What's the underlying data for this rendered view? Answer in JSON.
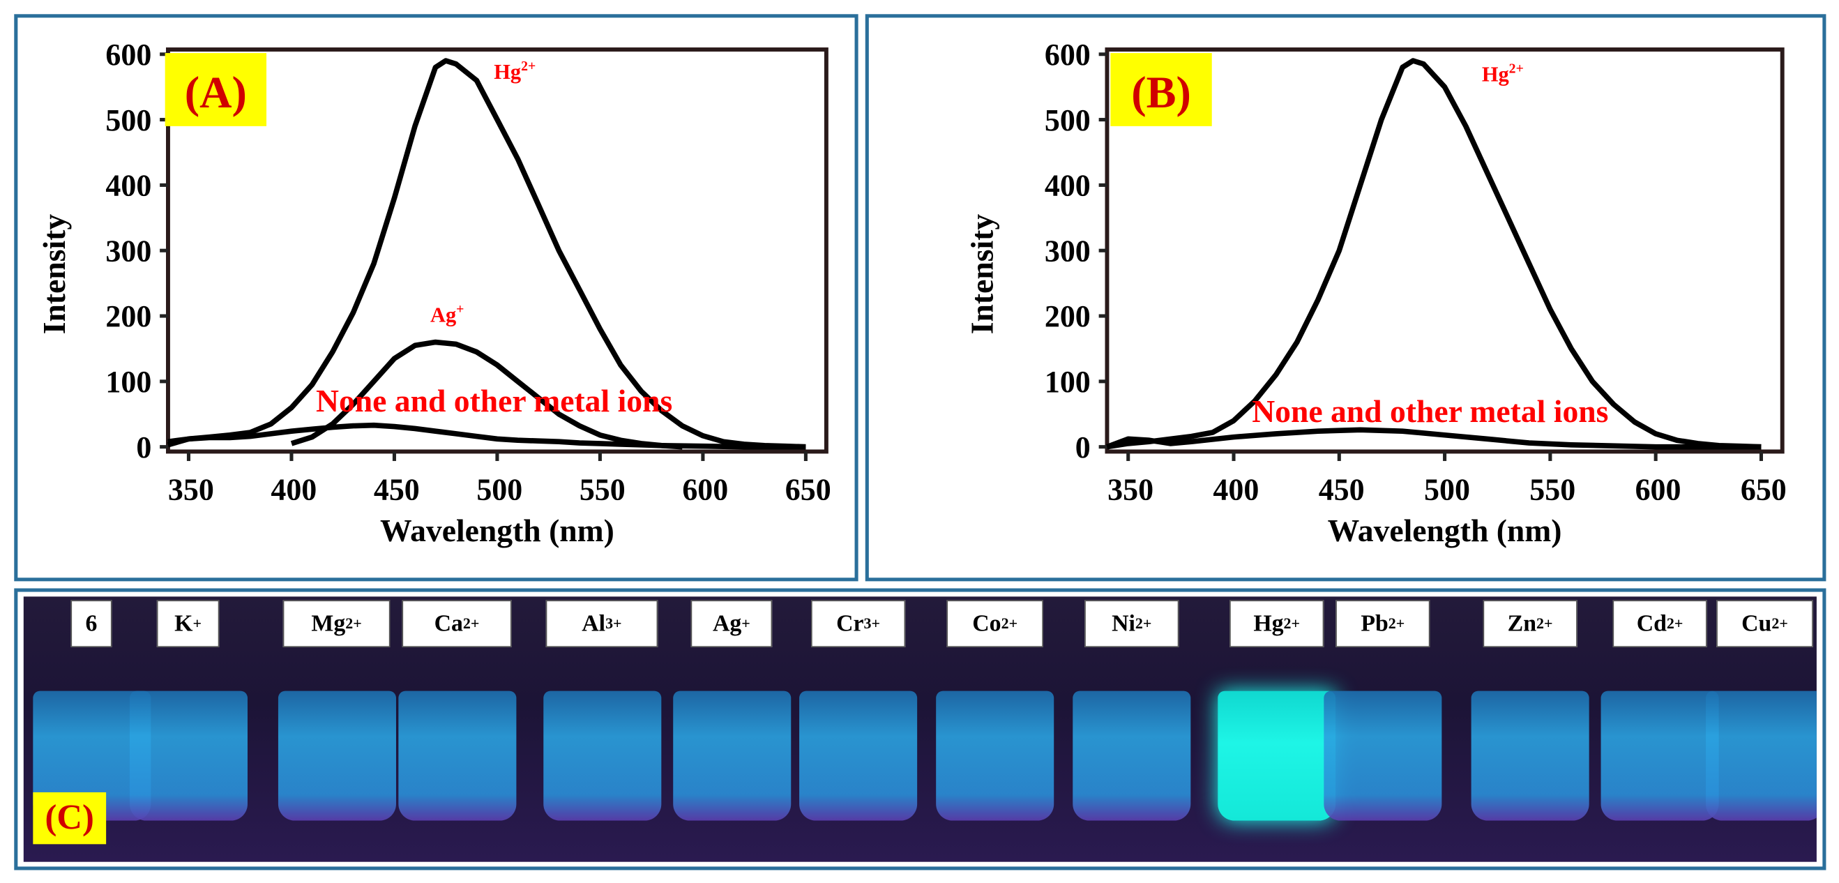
{
  "chart_data": [
    {
      "type": "line",
      "panel_label": "(A)",
      "xlabel": "Wavelength (nm)",
      "ylabel": "Intensity",
      "xlim": [
        340,
        660
      ],
      "ylim": [
        0,
        600
      ],
      "xticks": [
        350,
        400,
        450,
        500,
        550,
        600,
        650
      ],
      "yticks": [
        0,
        100,
        200,
        300,
        400,
        500,
        600
      ],
      "grid": false,
      "annotations": {
        "hg": "Hg",
        "hg_sup": "2+",
        "ag": "Ag",
        "ag_sup": "+",
        "none": "None and other metal ions"
      },
      "series": [
        {
          "name": "Hg2+",
          "x": [
            340,
            350,
            360,
            370,
            380,
            390,
            400,
            410,
            420,
            430,
            440,
            450,
            460,
            470,
            475,
            480,
            490,
            500,
            510,
            520,
            530,
            540,
            550,
            560,
            570,
            580,
            590,
            600,
            610,
            620,
            630,
            640,
            650
          ],
          "y": [
            8,
            12,
            15,
            18,
            22,
            35,
            60,
            95,
            145,
            205,
            280,
            380,
            490,
            580,
            590,
            585,
            560,
            500,
            440,
            370,
            300,
            240,
            180,
            125,
            85,
            55,
            32,
            17,
            8,
            4,
            2,
            1,
            0
          ]
        },
        {
          "name": "Ag+",
          "x": [
            400,
            410,
            420,
            430,
            440,
            450,
            460,
            470,
            480,
            490,
            500,
            510,
            520,
            530,
            540,
            550,
            560,
            570,
            580,
            590
          ],
          "y": [
            5,
            15,
            35,
            65,
            100,
            135,
            155,
            160,
            157,
            145,
            125,
            100,
            75,
            50,
            32,
            18,
            10,
            5,
            2,
            0
          ]
        },
        {
          "name": "None and other metal ions",
          "x": [
            340,
            350,
            360,
            370,
            380,
            390,
            400,
            410,
            420,
            430,
            440,
            450,
            460,
            470,
            480,
            490,
            500,
            510,
            520,
            530,
            540,
            550,
            560,
            570,
            580,
            600,
            620,
            650
          ],
          "y": [
            3,
            12,
            14,
            14,
            16,
            20,
            24,
            27,
            30,
            32,
            33,
            31,
            28,
            24,
            20,
            16,
            12,
            10,
            9,
            8,
            6,
            5,
            4,
            3,
            2,
            1,
            0,
            0
          ]
        }
      ]
    },
    {
      "type": "line",
      "panel_label": "(B)",
      "xlabel": "Wavelength (nm)",
      "ylabel": "Intensity",
      "xlim": [
        340,
        660
      ],
      "ylim": [
        0,
        600
      ],
      "xticks": [
        350,
        400,
        450,
        500,
        550,
        600,
        650
      ],
      "yticks": [
        0,
        100,
        200,
        300,
        400,
        500,
        600
      ],
      "grid": false,
      "annotations": {
        "hg": "Hg",
        "hg_sup": "2+",
        "none": "None and other metal ions"
      },
      "series": [
        {
          "name": "Hg2+",
          "x": [
            340,
            350,
            360,
            370,
            380,
            390,
            400,
            410,
            420,
            430,
            440,
            450,
            460,
            470,
            480,
            485,
            490,
            500,
            510,
            520,
            530,
            540,
            550,
            560,
            570,
            580,
            590,
            600,
            610,
            620,
            630,
            640,
            650
          ],
          "y": [
            0,
            5,
            8,
            12,
            16,
            22,
            40,
            70,
            110,
            160,
            225,
            300,
            400,
            500,
            580,
            590,
            585,
            550,
            490,
            420,
            350,
            280,
            210,
            150,
            100,
            65,
            38,
            20,
            10,
            5,
            2,
            1,
            0
          ]
        },
        {
          "name": "None and other metal ions",
          "x": [
            340,
            350,
            360,
            370,
            380,
            400,
            420,
            440,
            460,
            480,
            500,
            520,
            540,
            560,
            600,
            650
          ],
          "y": [
            0,
            12,
            10,
            5,
            8,
            15,
            20,
            24,
            26,
            24,
            18,
            12,
            6,
            3,
            0,
            0
          ]
        }
      ]
    }
  ],
  "panel_c": {
    "label": "(C)",
    "vials": [
      {
        "ion": "6",
        "sup": ""
      },
      {
        "ion": "K",
        "sup": "+"
      },
      {
        "ion": "Mg",
        "sup": "2+"
      },
      {
        "ion": "Ca",
        "sup": "2+"
      },
      {
        "ion": "Al",
        "sup": "3+"
      },
      {
        "ion": "Ag",
        "sup": "+"
      },
      {
        "ion": "Cr",
        "sup": "3+"
      },
      {
        "ion": "Co",
        "sup": "2+"
      },
      {
        "ion": "Ni",
        "sup": "2+"
      },
      {
        "ion": "Hg",
        "sup": "2+",
        "bright": true
      },
      {
        "ion": "Pb",
        "sup": "2+"
      },
      {
        "ion": "Zn",
        "sup": "2+"
      },
      {
        "ion": "Cd",
        "sup": "2+"
      },
      {
        "ion": "Cu",
        "sup": "2+"
      }
    ]
  },
  "colors": {
    "panel_border": "#2a6f9b",
    "annotation": "#ff0000",
    "panel_label": "#d00000",
    "label_bg": "#ffff00",
    "hg_fluorescence": "#1ef5e6",
    "other_fluorescence": "#2aa2e0"
  }
}
